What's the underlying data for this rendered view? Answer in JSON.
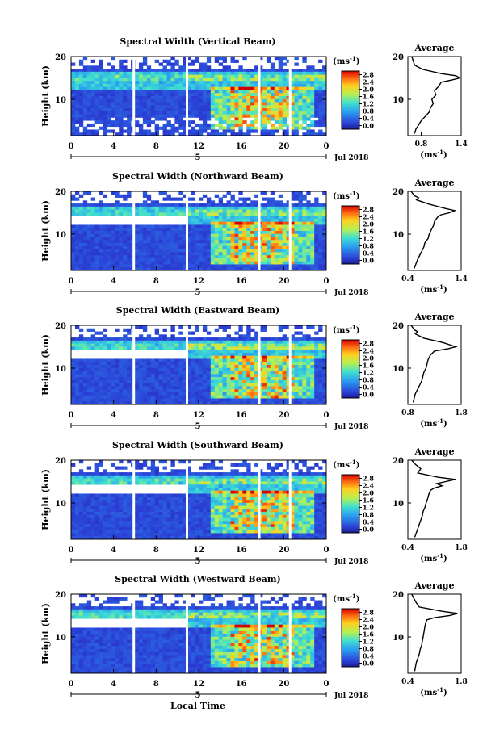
{
  "figure": {
    "xlabel": "Local Time"
  },
  "colorbar": {
    "unit": "(ms",
    "unit_exp": "-1",
    "unit_close": ")",
    "ticks": [
      "2.8",
      "2.4",
      "2.0",
      "1.6",
      "1.2",
      "0.8",
      "0.4",
      "0.0"
    ]
  },
  "chart_data": [
    {
      "type": "heatmap",
      "title": "Spectral Width (Vertical Beam)",
      "ylabel": "Height (km)",
      "x_ticks": [
        "0",
        "4",
        "8",
        "12",
        "16",
        "20",
        "0"
      ],
      "y_ticks": [
        "20",
        "10"
      ],
      "date_label": "Jul 2018",
      "day_marker": "5",
      "xlim": [
        0,
        24
      ],
      "ylim": [
        1.5,
        20
      ],
      "zlim": [
        0.0,
        3.0
      ],
      "data_gaps_hours": [
        5.9,
        10.9,
        17.7,
        20.6
      ],
      "profile": {
        "type": "line",
        "title": "Average",
        "xlabel": "(ms",
        "xlabel_exp": "-1",
        "xlabel_close": ")",
        "x_ticks": [
          "0.8",
          "1.4"
        ],
        "y_ticks": [
          "20",
          "10"
        ],
        "xlim": [
          0.6,
          1.4
        ],
        "ylim": [
          1.5,
          20
        ],
        "height_km": [
          20,
          19,
          18,
          17,
          16,
          15.5,
          15,
          14.5,
          14,
          13,
          12,
          11,
          10,
          9,
          8,
          7,
          6,
          5,
          4,
          3,
          2
        ],
        "width_ms": [
          0.66,
          0.68,
          0.7,
          0.82,
          1.1,
          1.32,
          1.38,
          1.26,
          1.1,
          1.06,
          1.0,
          1.02,
          0.96,
          0.98,
          0.94,
          0.92,
          0.86,
          0.8,
          0.76,
          0.72,
          0.7
        ]
      }
    },
    {
      "type": "heatmap",
      "title": "Spectral Width (Northward Beam)",
      "ylabel": "Height (km)",
      "x_ticks": [
        "0",
        "4",
        "8",
        "12",
        "16",
        "20",
        "0"
      ],
      "y_ticks": [
        "20",
        "10"
      ],
      "date_label": "Jul 2018",
      "day_marker": "5",
      "xlim": [
        0,
        24
      ],
      "ylim": [
        1.5,
        20
      ],
      "zlim": [
        0.0,
        3.0
      ],
      "data_gaps_hours": [
        5.9,
        10.9,
        17.7,
        20.6
      ],
      "profile": {
        "type": "line",
        "title": "Average",
        "xlabel": "(ms",
        "xlabel_exp": "-1",
        "xlabel_close": ")",
        "x_ticks": [
          "0.4",
          "1.4"
        ],
        "y_ticks": [
          "20",
          "10"
        ],
        "xlim": [
          0.4,
          1.4
        ],
        "ylim": [
          1.5,
          20
        ],
        "height_km": [
          20,
          19,
          18.5,
          18,
          17,
          16,
          15.5,
          15,
          14.5,
          14,
          13,
          12,
          11,
          10,
          9,
          8,
          7,
          6,
          5,
          4,
          3,
          2
        ],
        "width_ms": [
          0.46,
          0.52,
          0.6,
          0.56,
          0.8,
          1.1,
          1.28,
          1.18,
          1.02,
          0.96,
          0.9,
          0.88,
          0.84,
          0.8,
          0.78,
          0.72,
          0.7,
          0.66,
          0.62,
          0.58,
          0.55,
          0.52
        ]
      }
    },
    {
      "type": "heatmap",
      "title": "Spectral Width (Eastward Beam)",
      "ylabel": "Height (km)",
      "x_ticks": [
        "0",
        "4",
        "8",
        "12",
        "16",
        "20",
        "0"
      ],
      "y_ticks": [
        "20",
        "10"
      ],
      "date_label": "Jul 2018",
      "day_marker": "5",
      "xlim": [
        0,
        24
      ],
      "ylim": [
        1.5,
        20
      ],
      "zlim": [
        0.0,
        3.0
      ],
      "data_gaps_hours": [
        5.9,
        10.9,
        17.7,
        20.6
      ],
      "profile": {
        "type": "line",
        "title": "Average",
        "xlabel": "(ms",
        "xlabel_exp": "-1",
        "xlabel_close": ")",
        "x_ticks": [
          "0.8",
          "1.8"
        ],
        "y_ticks": [
          "20",
          "10"
        ],
        "xlim": [
          0.8,
          1.8
        ],
        "ylim": [
          1.5,
          20
        ],
        "height_km": [
          20,
          19,
          18.5,
          18,
          17,
          16,
          15,
          14.5,
          14,
          13,
          12,
          11,
          10,
          9,
          8,
          7,
          6,
          5,
          4,
          3,
          2
        ],
        "width_ms": [
          0.86,
          0.92,
          0.98,
          0.94,
          1.1,
          1.45,
          1.7,
          1.55,
          1.3,
          1.22,
          1.18,
          1.16,
          1.14,
          1.1,
          1.08,
          1.06,
          1.02,
          0.98,
          0.94,
          0.92,
          0.9
        ]
      }
    },
    {
      "type": "heatmap",
      "title": "Spectral Width (Southward Beam)",
      "ylabel": "Height (km)",
      "x_ticks": [
        "0",
        "4",
        "8",
        "12",
        "16",
        "20",
        "0"
      ],
      "y_ticks": [
        "20",
        "10"
      ],
      "date_label": "Jul 2018",
      "day_marker": "5",
      "xlim": [
        0,
        24
      ],
      "ylim": [
        1.5,
        20
      ],
      "zlim": [
        0.0,
        3.0
      ],
      "data_gaps_hours": [
        5.9,
        10.9,
        17.7,
        20.6
      ],
      "profile": {
        "type": "line",
        "title": "Average",
        "xlabel": "(ms",
        "xlabel_exp": "-1",
        "xlabel_close": ")",
        "x_ticks": [
          "0.4",
          "1.8"
        ],
        "y_ticks": [
          "20",
          "10"
        ],
        "xlim": [
          0.4,
          1.8
        ],
        "ylim": [
          1.5,
          20
        ],
        "height_km": [
          20,
          19,
          18,
          17,
          16,
          15.5,
          15,
          14.5,
          14,
          13.5,
          13,
          12,
          11,
          10,
          9,
          8,
          7,
          6,
          5,
          4,
          3,
          2
        ],
        "width_ms": [
          0.5,
          0.6,
          0.74,
          0.66,
          1.2,
          1.65,
          1.4,
          1.15,
          1.3,
          1.1,
          1.0,
          0.95,
          0.92,
          0.88,
          0.85,
          0.8,
          0.78,
          0.74,
          0.7,
          0.66,
          0.62,
          0.58
        ]
      }
    },
    {
      "type": "heatmap",
      "title": "Spectral Width (Westward Beam)",
      "ylabel": "Height (km)",
      "x_ticks": [
        "0",
        "4",
        "8",
        "12",
        "16",
        "20",
        "0"
      ],
      "y_ticks": [
        "20",
        "10"
      ],
      "date_label": "Jul 2018",
      "day_marker": "5",
      "xlim": [
        0,
        24
      ],
      "ylim": [
        1.5,
        20
      ],
      "zlim": [
        0.0,
        3.0
      ],
      "data_gaps_hours": [
        5.9,
        10.9,
        17.7,
        20.6
      ],
      "profile": {
        "type": "line",
        "title": "Average",
        "xlabel": "(ms",
        "xlabel_exp": "-1",
        "xlabel_close": ")",
        "x_ticks": [
          "0.4",
          "1.8"
        ],
        "y_ticks": [
          "20",
          "10"
        ],
        "xlim": [
          0.4,
          1.8
        ],
        "ylim": [
          1.5,
          20
        ],
        "height_km": [
          20,
          19,
          18,
          17,
          16,
          15.5,
          15,
          14.5,
          14,
          13,
          12,
          11,
          10,
          9,
          8,
          7,
          6,
          5,
          4,
          3,
          2
        ],
        "width_ms": [
          0.5,
          0.56,
          0.62,
          0.7,
          1.3,
          1.7,
          1.5,
          1.1,
          0.9,
          0.86,
          0.84,
          0.82,
          0.8,
          0.78,
          0.76,
          0.72,
          0.7,
          0.66,
          0.62,
          0.6,
          0.58
        ]
      }
    }
  ]
}
